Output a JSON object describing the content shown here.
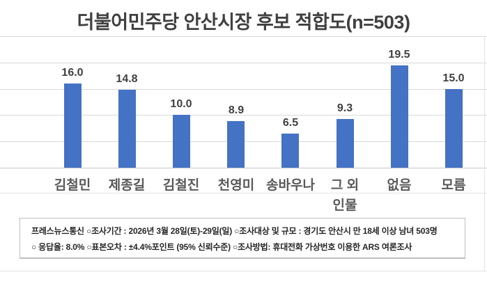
{
  "page_title": "더불어민주당 안산시장 후보 적합도(n=503)",
  "chart_data": {
    "type": "bar",
    "title": "더불어민주당 안산시장 후보 적합도(n=503)",
    "categories": [
      "김철민",
      "제종길",
      "김철진",
      "천영미",
      "송바우나",
      "그 외 인물",
      "없음",
      "모름"
    ],
    "category_display": [
      {
        "line1": "김철민",
        "line2": ""
      },
      {
        "line1": "제종길",
        "line2": ""
      },
      {
        "line1": "김철진",
        "line2": ""
      },
      {
        "line1": "천영미",
        "line2": ""
      },
      {
        "line1": "송바우나",
        "line2": ""
      },
      {
        "line1": "그 외",
        "line2": "인물"
      },
      {
        "line1": "없음",
        "line2": ""
      },
      {
        "line1": "모름",
        "line2": ""
      }
    ],
    "values": [
      16.0,
      14.8,
      10.0,
      8.9,
      6.5,
      9.3,
      19.5,
      15.0
    ],
    "value_labels": [
      "16.0",
      "14.8",
      "10.0",
      "8.9",
      "6.5",
      "9.3",
      "19.5",
      "15.0"
    ],
    "ylim": [
      0,
      25
    ],
    "grid": true,
    "gridline_step": 5,
    "legend": false,
    "xlabel": "",
    "ylabel": ""
  },
  "footer": {
    "line1": "프레스뉴스통신 ○조사기간 : 2026년 3월 28일(토)-29일(일) ○조사대상 및 규모 : 경기도 안산시 만 18세 이상 남녀 503명",
    "line2": "○ 응답율: 8.0% ○표본오차 : ±4.4%포인트 (95% 신뢰수준) ○조사방법: 휴대전화 가상번호 이용한 ARS 여론조사"
  },
  "colors": {
    "bar": "#4472C4",
    "title_text": "#404040",
    "value_label_text": "#404040",
    "category_label_text": "#595959",
    "gridline": "#D9D9D9",
    "axis_line": "#C6C6C6",
    "footer_border": "#BFBFBF",
    "footer_text": "#262626"
  }
}
